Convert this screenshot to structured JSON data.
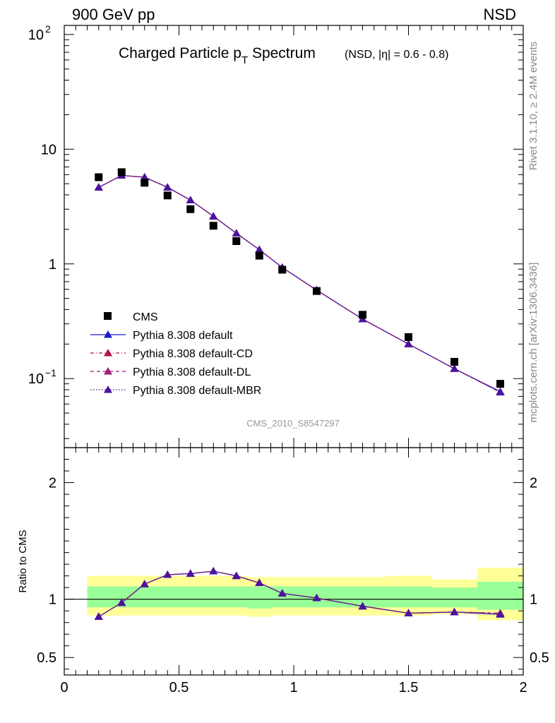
{
  "header": {
    "left_label": "900 GeV pp",
    "right_label": "NSD"
  },
  "side_labels": {
    "top": "Rivet 3.1.10, ≥ 2.4M events",
    "bottom": "mcplots.cern.ch [arXiv:1306.3436]"
  },
  "colors": {
    "data": "#000000",
    "pythia_default": "#1a1acc",
    "pythia_cd": "#b0134a",
    "pythia_dl": "#9e1f73",
    "pythia_mbr": "#4b139e",
    "band_outer": "#ffff99",
    "band_inner": "#99ff99",
    "ref_line": "#000000"
  },
  "chart_data": [
    {
      "type": "scatter",
      "title_main": "Charged Particle p",
      "title_sub": "T",
      "title_main2": " Spectrum",
      "title_small": "(NSD, |η| = 0.6 - 0.8)",
      "watermark": "CMS_2010_S8547297",
      "xlim": [
        0,
        2
      ],
      "ylim": [
        0.025,
        120
      ],
      "yscale": "log",
      "ytick_labels": [
        "10^-1",
        "1",
        "10",
        "10^2"
      ],
      "legend": [
        "CMS",
        "Pythia 8.308 default",
        "Pythia 8.308 default-CD",
        "Pythia 8.308 default-DL",
        "Pythia 8.308 default-MBR"
      ],
      "legend_position": "lower-left",
      "x": [
        0.15,
        0.25,
        0.35,
        0.45,
        0.55,
        0.65,
        0.75,
        0.85,
        0.95,
        1.1,
        1.3,
        1.5,
        1.7,
        1.9
      ],
      "series": [
        {
          "name": "CMS",
          "style": "marker",
          "values": [
            5.7,
            6.3,
            5.1,
            3.95,
            3.0,
            2.15,
            1.58,
            1.18,
            0.89,
            0.58,
            0.36,
            0.23,
            0.14,
            0.09
          ]
        },
        {
          "name": "Pythia 8.308 default",
          "style": "solid",
          "values": [
            4.65,
            5.9,
            5.7,
            4.65,
            3.6,
            2.6,
            1.85,
            1.33,
            0.93,
            0.59,
            0.33,
            0.2,
            0.122,
            0.077
          ]
        },
        {
          "name": "Pythia 8.308 default-CD",
          "style": "dashdot",
          "values": [
            4.65,
            5.9,
            5.7,
            4.65,
            3.6,
            2.6,
            1.85,
            1.33,
            0.93,
            0.59,
            0.33,
            0.2,
            0.122,
            0.076
          ]
        },
        {
          "name": "Pythia 8.308 default-DL",
          "style": "dashed",
          "values": [
            4.65,
            5.9,
            5.7,
            4.65,
            3.6,
            2.6,
            1.85,
            1.33,
            0.93,
            0.59,
            0.33,
            0.2,
            0.122,
            0.076
          ]
        },
        {
          "name": "Pythia 8.308 default-MBR",
          "style": "dotted",
          "values": [
            4.65,
            5.9,
            5.7,
            4.65,
            3.6,
            2.6,
            1.85,
            1.33,
            0.93,
            0.59,
            0.33,
            0.2,
            0.122,
            0.076
          ]
        }
      ]
    },
    {
      "type": "line",
      "ylabel": "Ratio to CMS",
      "xlim": [
        0,
        2
      ],
      "ylim": [
        0.35,
        2.3
      ],
      "xtick_labels": [
        "0",
        "0.5",
        "1",
        "1.5",
        "2"
      ],
      "ytick_labels": [
        "0.5",
        "1",
        "2"
      ],
      "ytick_values": [
        0.5,
        1,
        2
      ],
      "x": [
        0.15,
        0.25,
        0.35,
        0.45,
        0.55,
        0.65,
        0.75,
        0.85,
        0.95,
        1.1,
        1.3,
        1.5,
        1.7,
        1.9
      ],
      "uncertainty_bands": {
        "bin_edges": [
          0.1,
          0.2,
          0.3,
          0.4,
          0.5,
          0.6,
          0.7,
          0.8,
          0.9,
          1.0,
          1.2,
          1.4,
          1.6,
          1.8,
          2.0
        ],
        "outer_low": [
          0.86,
          0.86,
          0.86,
          0.86,
          0.86,
          0.86,
          0.86,
          0.85,
          0.86,
          0.86,
          0.86,
          0.86,
          0.87,
          0.82
        ],
        "outer_high": [
          1.2,
          1.2,
          1.2,
          1.2,
          1.2,
          1.2,
          1.2,
          1.19,
          1.19,
          1.19,
          1.19,
          1.2,
          1.17,
          1.27
        ],
        "inner_low": [
          0.93,
          0.93,
          0.93,
          0.93,
          0.93,
          0.93,
          0.93,
          0.92,
          0.93,
          0.93,
          0.93,
          0.93,
          0.93,
          0.91
        ],
        "inner_high": [
          1.11,
          1.11,
          1.11,
          1.11,
          1.11,
          1.11,
          1.11,
          1.11,
          1.11,
          1.11,
          1.11,
          1.11,
          1.1,
          1.15
        ]
      },
      "series": [
        {
          "name": "Pythia 8.308 default",
          "style": "solid",
          "values": [
            0.85,
            0.97,
            1.13,
            1.21,
            1.22,
            1.24,
            1.2,
            1.14,
            1.05,
            1.01,
            0.94,
            0.88,
            0.89,
            0.87
          ]
        },
        {
          "name": "Pythia 8.308 default-CD",
          "style": "dashdot",
          "values": [
            0.85,
            0.97,
            1.13,
            1.21,
            1.22,
            1.24,
            1.2,
            1.14,
            1.05,
            1.01,
            0.94,
            0.88,
            0.89,
            0.88
          ]
        },
        {
          "name": "Pythia 8.308 default-DL",
          "style": "dashed",
          "values": [
            0.85,
            0.97,
            1.13,
            1.21,
            1.22,
            1.24,
            1.2,
            1.14,
            1.05,
            1.01,
            0.94,
            0.88,
            0.89,
            0.88
          ]
        },
        {
          "name": "Pythia 8.308 default-MBR",
          "style": "dotted",
          "values": [
            0.85,
            0.97,
            1.13,
            1.21,
            1.22,
            1.24,
            1.2,
            1.14,
            1.05,
            1.01,
            0.94,
            0.88,
            0.89,
            0.87
          ]
        }
      ]
    }
  ]
}
